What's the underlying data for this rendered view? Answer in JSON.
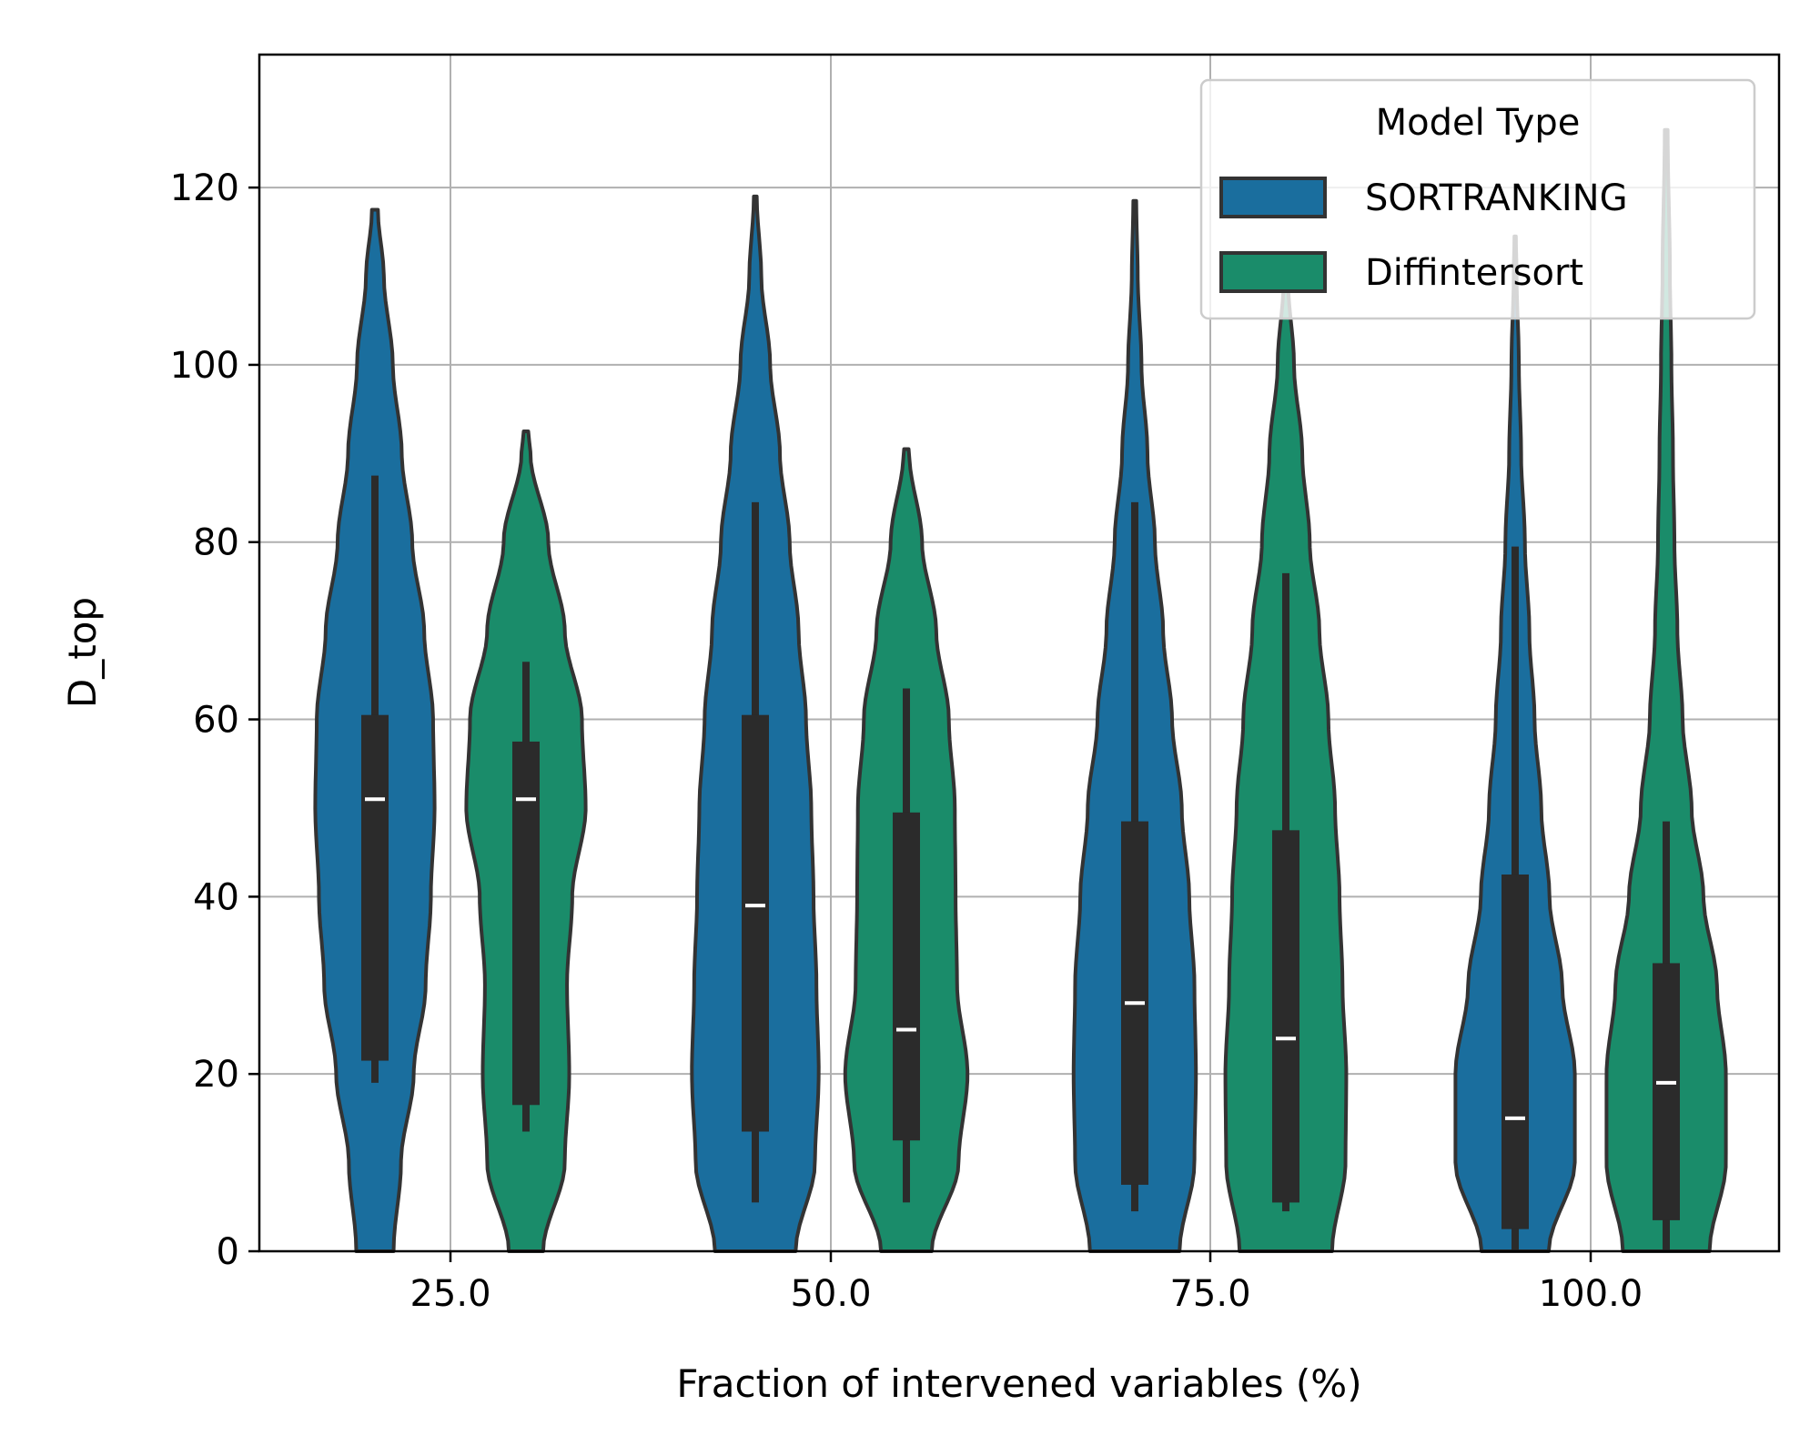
{
  "chart_data": {
    "type": "violin",
    "xlabel": "Fraction of intervened variables (%)",
    "ylabel": "D_top",
    "categories": [
      "25.0",
      "50.0",
      "75.0",
      "100.0"
    ],
    "ylim": [
      0,
      135
    ],
    "yticks": [
      0,
      20,
      40,
      60,
      80,
      100,
      120
    ],
    "grid": true,
    "legend": {
      "title": "Model Type",
      "placement": "top-right"
    },
    "series": [
      {
        "name": "SORTRANKING",
        "color": "#1a6e9e",
        "stats": [
          {
            "median": 51,
            "q1": 21.5,
            "q3": 60.5,
            "whisker_low": 19,
            "whisker_high": 87.5,
            "min": 0,
            "max": 117.5
          },
          {
            "median": 39,
            "q1": 13.5,
            "q3": 60.5,
            "whisker_low": 5.5,
            "whisker_high": 84.5,
            "min": 0,
            "max": 119
          },
          {
            "median": 28,
            "q1": 7.5,
            "q3": 48.5,
            "whisker_low": 4.5,
            "whisker_high": 84.5,
            "min": 0,
            "max": 118.5
          },
          {
            "median": 15,
            "q1": 2.5,
            "q3": 42.5,
            "whisker_low": 0,
            "whisker_high": 79.5,
            "min": 0,
            "max": 114.5
          }
        ],
        "density": [
          [
            [
              0,
              0.25
            ],
            [
              10,
              0.35
            ],
            [
              20,
              0.52
            ],
            [
              30,
              0.68
            ],
            [
              40,
              0.75
            ],
            [
              50,
              0.8
            ],
            [
              60,
              0.78
            ],
            [
              70,
              0.66
            ],
            [
              80,
              0.5
            ],
            [
              90,
              0.36
            ],
            [
              100,
              0.24
            ],
            [
              110,
              0.12
            ],
            [
              117.5,
              0.04
            ]
          ],
          [
            [
              0,
              0.54
            ],
            [
              10,
              0.8
            ],
            [
              20,
              0.85
            ],
            [
              30,
              0.82
            ],
            [
              40,
              0.78
            ],
            [
              50,
              0.75
            ],
            [
              60,
              0.68
            ],
            [
              70,
              0.58
            ],
            [
              80,
              0.46
            ],
            [
              90,
              0.33
            ],
            [
              100,
              0.2
            ],
            [
              110,
              0.08
            ],
            [
              119,
              0.02
            ]
          ],
          [
            [
              0,
              0.6
            ],
            [
              10,
              0.8
            ],
            [
              20,
              0.82
            ],
            [
              30,
              0.8
            ],
            [
              40,
              0.73
            ],
            [
              50,
              0.63
            ],
            [
              60,
              0.5
            ],
            [
              70,
              0.38
            ],
            [
              80,
              0.27
            ],
            [
              90,
              0.17
            ],
            [
              100,
              0.09
            ],
            [
              110,
              0.04
            ],
            [
              118.5,
              0.02
            ]
          ],
          [
            [
              0,
              0.45
            ],
            [
              10,
              0.8
            ],
            [
              20,
              0.8
            ],
            [
              30,
              0.63
            ],
            [
              40,
              0.46
            ],
            [
              50,
              0.35
            ],
            [
              60,
              0.26
            ],
            [
              70,
              0.19
            ],
            [
              80,
              0.13
            ],
            [
              90,
              0.08
            ],
            [
              100,
              0.05
            ],
            [
              110,
              0.02
            ],
            [
              114.5,
              0.01
            ]
          ]
        ]
      },
      {
        "name": "Diffintersort",
        "color": "#1a8c6a",
        "stats": [
          {
            "median": 51,
            "q1": 16.5,
            "q3": 57.5,
            "whisker_low": 13.5,
            "whisker_high": 66.5,
            "min": 0,
            "max": 92.5
          },
          {
            "median": 25,
            "q1": 12.5,
            "q3": 49.5,
            "whisker_low": 5.5,
            "whisker_high": 63.5,
            "min": 0,
            "max": 90.5
          },
          {
            "median": 24,
            "q1": 5.5,
            "q3": 47.5,
            "whisker_low": 4.5,
            "whisker_high": 76.5,
            "min": 0,
            "max": 109.5
          },
          {
            "median": 19,
            "q1": 3.5,
            "q3": 32.5,
            "whisker_low": 0,
            "whisker_high": 48.5,
            "min": 0,
            "max": 126.5
          }
        ],
        "density": [
          [
            [
              0,
              0.23
            ],
            [
              10,
              0.52
            ],
            [
              20,
              0.58
            ],
            [
              30,
              0.55
            ],
            [
              40,
              0.62
            ],
            [
              50,
              0.8
            ],
            [
              60,
              0.75
            ],
            [
              70,
              0.52
            ],
            [
              80,
              0.3
            ],
            [
              90,
              0.06
            ],
            [
              92.5,
              0.03
            ]
          ],
          [
            [
              0,
              0.34
            ],
            [
              10,
              0.7
            ],
            [
              20,
              0.82
            ],
            [
              30,
              0.68
            ],
            [
              40,
              0.66
            ],
            [
              50,
              0.65
            ],
            [
              60,
              0.57
            ],
            [
              70,
              0.4
            ],
            [
              80,
              0.21
            ],
            [
              90,
              0.04
            ],
            [
              90.5,
              0.03
            ]
          ],
          [
            [
              0,
              0.62
            ],
            [
              10,
              0.8
            ],
            [
              20,
              0.81
            ],
            [
              30,
              0.76
            ],
            [
              40,
              0.72
            ],
            [
              50,
              0.66
            ],
            [
              60,
              0.57
            ],
            [
              70,
              0.45
            ],
            [
              80,
              0.32
            ],
            [
              90,
              0.22
            ],
            [
              100,
              0.11
            ],
            [
              109.5,
              0.03
            ]
          ],
          [
            [
              0,
              0.58
            ],
            [
              10,
              0.8
            ],
            [
              20,
              0.8
            ],
            [
              30,
              0.68
            ],
            [
              40,
              0.5
            ],
            [
              50,
              0.34
            ],
            [
              60,
              0.22
            ],
            [
              70,
              0.15
            ],
            [
              80,
              0.11
            ],
            [
              90,
              0.09
            ],
            [
              100,
              0.07
            ],
            [
              110,
              0.05
            ],
            [
              126.5,
              0.02
            ]
          ]
        ]
      }
    ]
  }
}
